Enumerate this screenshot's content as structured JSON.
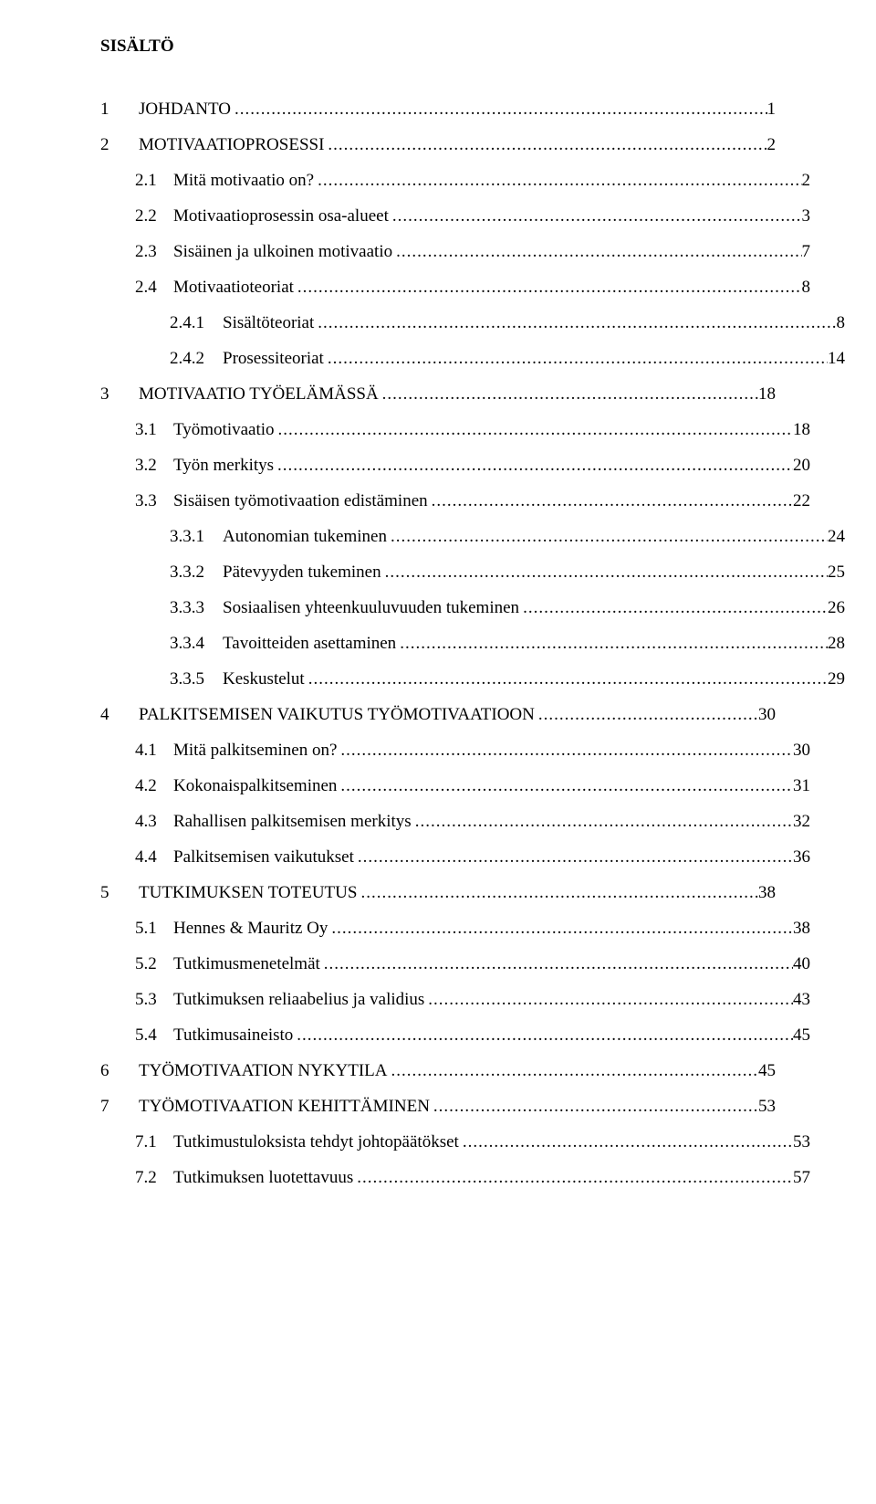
{
  "heading": "SISÄLTÖ",
  "entries": [
    {
      "level": 1,
      "bold": false,
      "num": "1",
      "title": "JOHDANTO",
      "page": "1"
    },
    {
      "level": 1,
      "bold": false,
      "num": "2",
      "title": "MOTIVAATIOPROSESSI",
      "page": "2"
    },
    {
      "level": 2,
      "bold": false,
      "num": "2.1",
      "title": "Mitä motivaatio on?",
      "page": "2"
    },
    {
      "level": 2,
      "bold": false,
      "num": "2.2",
      "title": "Motivaatioprosessin osa-alueet",
      "page": "3"
    },
    {
      "level": 2,
      "bold": false,
      "num": "2.3",
      "title": "Sisäinen ja ulkoinen motivaatio",
      "page": "7"
    },
    {
      "level": 2,
      "bold": false,
      "num": "2.4",
      "title": "Motivaatioteoriat",
      "page": "8"
    },
    {
      "level": 3,
      "bold": false,
      "num": "2.4.1",
      "title": "Sisältöteoriat",
      "page": "8"
    },
    {
      "level": 3,
      "bold": false,
      "num": "2.4.2",
      "title": "Prosessiteoriat",
      "page": "14"
    },
    {
      "level": 1,
      "bold": false,
      "num": "3",
      "title": "MOTIVAATIO TYÖELÄMÄSSÄ",
      "page": "18"
    },
    {
      "level": 2,
      "bold": false,
      "num": "3.1",
      "title": "Työmotivaatio",
      "page": "18"
    },
    {
      "level": 2,
      "bold": false,
      "num": "3.2",
      "title": "Työn merkitys",
      "page": "20"
    },
    {
      "level": 2,
      "bold": false,
      "num": "3.3",
      "title": "Sisäisen työmotivaation edistäminen",
      "page": "22"
    },
    {
      "level": 3,
      "bold": false,
      "num": "3.3.1",
      "title": "Autonomian tukeminen",
      "page": "24"
    },
    {
      "level": 3,
      "bold": false,
      "num": "3.3.2",
      "title": "Pätevyyden tukeminen",
      "page": "25"
    },
    {
      "level": 3,
      "bold": false,
      "num": "3.3.3",
      "title": "Sosiaalisen yhteenkuuluvuuden tukeminen",
      "page": "26"
    },
    {
      "level": 3,
      "bold": false,
      "num": "3.3.4",
      "title": "Tavoitteiden asettaminen",
      "page": "28"
    },
    {
      "level": 3,
      "bold": false,
      "num": "3.3.5",
      "title": "Keskustelut",
      "page": "29"
    },
    {
      "level": 1,
      "bold": false,
      "num": "4",
      "title": "PALKITSEMISEN VAIKUTUS TYÖMOTIVAATIOON",
      "page": "30"
    },
    {
      "level": 2,
      "bold": false,
      "num": "4.1",
      "title": "Mitä palkitseminen on?",
      "page": "30"
    },
    {
      "level": 2,
      "bold": false,
      "num": "4.2",
      "title": "Kokonaispalkitseminen",
      "page": "31"
    },
    {
      "level": 2,
      "bold": false,
      "num": "4.3",
      "title": "Rahallisen palkitsemisen merkitys",
      "page": "32"
    },
    {
      "level": 2,
      "bold": false,
      "num": "4.4",
      "title": "Palkitsemisen vaikutukset",
      "page": "36"
    },
    {
      "level": 1,
      "bold": false,
      "num": "5",
      "title": "TUTKIMUKSEN TOTEUTUS",
      "page": "38"
    },
    {
      "level": 2,
      "bold": false,
      "num": "5.1",
      "title": "Hennes & Mauritz Oy",
      "page": "38"
    },
    {
      "level": 2,
      "bold": false,
      "num": "5.2",
      "title": "Tutkimusmenetelmät",
      "page": "40"
    },
    {
      "level": 2,
      "bold": false,
      "num": "5.3",
      "title": "Tutkimuksen reliaabelius ja validius",
      "page": "43"
    },
    {
      "level": 2,
      "bold": false,
      "num": "5.4",
      "title": "Tutkimusaineisto",
      "page": "45"
    },
    {
      "level": 1,
      "bold": false,
      "num": "6",
      "title": "TYÖMOTIVAATION NYKYTILA",
      "page": "45"
    },
    {
      "level": 1,
      "bold": false,
      "num": "7",
      "title": "TYÖMOTIVAATION KEHITTÄMINEN",
      "page": "53"
    },
    {
      "level": 2,
      "bold": false,
      "num": "7.1",
      "title": "Tutkimustuloksista tehdyt johtopäätökset",
      "page": "53"
    },
    {
      "level": 2,
      "bold": false,
      "num": "7.2",
      "title": "Tutkimuksen luotettavuus",
      "page": "57"
    }
  ]
}
